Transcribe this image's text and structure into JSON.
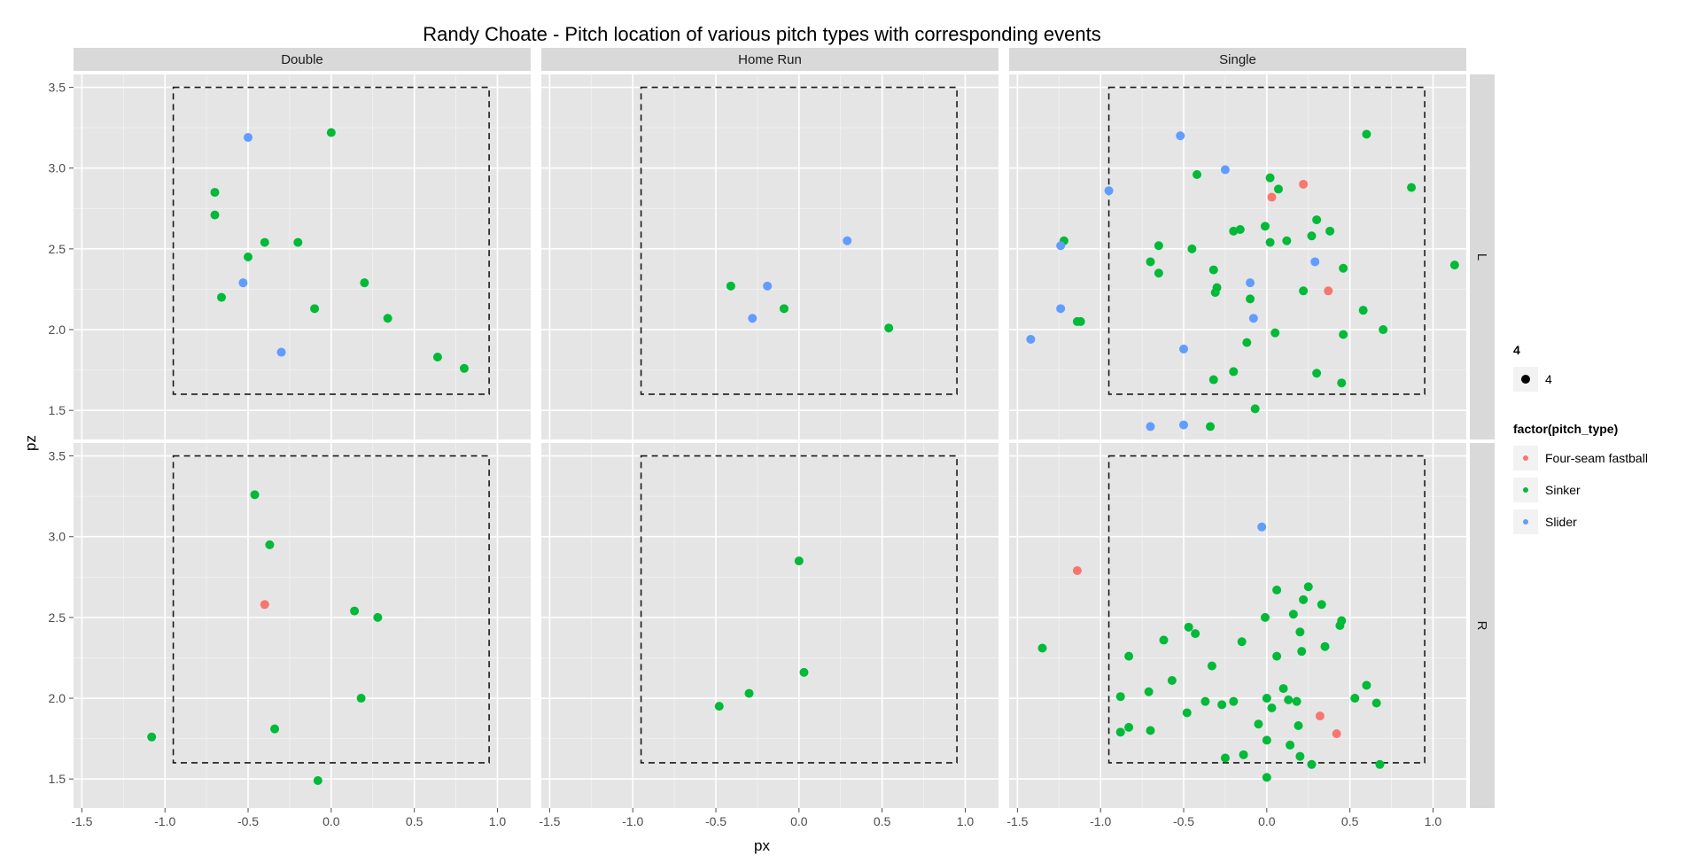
{
  "chart_data": {
    "type": "scatter",
    "title": "Randy Choate - Pitch location of various pitch types with corresponding events",
    "xlabel": "px",
    "ylabel": "pz",
    "xlim": [
      -1.55,
      1.2
    ],
    "ylim": [
      1.32,
      3.58
    ],
    "x_ticks": [
      -1.5,
      -1.0,
      -0.5,
      0.0,
      0.5,
      1.0
    ],
    "x_tick_labels": [
      "-1.5",
      "-1.0",
      "-0.5",
      "0.0",
      "0.5",
      "1.0"
    ],
    "y_ticks": [
      1.5,
      2.0,
      2.5,
      3.0,
      3.5
    ],
    "y_tick_labels": [
      "1.5",
      "2.0",
      "2.5",
      "3.0",
      "3.5"
    ],
    "strike_zone": {
      "x": [
        -0.95,
        0.95
      ],
      "y": [
        1.6,
        3.5
      ]
    },
    "grid": true,
    "columns": [
      "Double",
      "Home Run",
      "Single"
    ],
    "rows": [
      "L",
      "R"
    ],
    "colors": {
      "Four-seam fastball": "#F8766D",
      "Sinker": "#00BA38",
      "Slider": "#619CFF"
    },
    "legend": {
      "size_title": "4",
      "size_label": "4",
      "color_title": "factor(pitch_type)",
      "entries": [
        "Four-seam fastball",
        "Sinker",
        "Slider"
      ],
      "position": "right"
    },
    "panels": [
      {
        "col": "Double",
        "row": "L",
        "points": [
          {
            "x": -0.5,
            "y": 3.19,
            "type": "Slider"
          },
          {
            "x": 0.0,
            "y": 3.22,
            "type": "Sinker"
          },
          {
            "x": -0.7,
            "y": 2.85,
            "type": "Sinker"
          },
          {
            "x": -0.7,
            "y": 2.71,
            "type": "Sinker"
          },
          {
            "x": -0.4,
            "y": 2.54,
            "type": "Sinker"
          },
          {
            "x": -0.2,
            "y": 2.54,
            "type": "Sinker"
          },
          {
            "x": -0.5,
            "y": 2.45,
            "type": "Sinker"
          },
          {
            "x": -0.53,
            "y": 2.29,
            "type": "Slider"
          },
          {
            "x": -0.66,
            "y": 2.2,
            "type": "Sinker"
          },
          {
            "x": 0.2,
            "y": 2.29,
            "type": "Sinker"
          },
          {
            "x": -0.1,
            "y": 2.13,
            "type": "Sinker"
          },
          {
            "x": 0.34,
            "y": 2.07,
            "type": "Sinker"
          },
          {
            "x": -0.3,
            "y": 1.86,
            "type": "Slider"
          },
          {
            "x": 0.64,
            "y": 1.83,
            "type": "Sinker"
          },
          {
            "x": 0.8,
            "y": 1.76,
            "type": "Sinker"
          }
        ]
      },
      {
        "col": "Home Run",
        "row": "L",
        "points": [
          {
            "x": 0.29,
            "y": 2.55,
            "type": "Slider"
          },
          {
            "x": -0.41,
            "y": 2.27,
            "type": "Sinker"
          },
          {
            "x": -0.19,
            "y": 2.27,
            "type": "Slider"
          },
          {
            "x": -0.28,
            "y": 2.07,
            "type": "Slider"
          },
          {
            "x": -0.09,
            "y": 2.13,
            "type": "Sinker"
          },
          {
            "x": 0.54,
            "y": 2.01,
            "type": "Sinker"
          }
        ]
      },
      {
        "col": "Single",
        "row": "L",
        "points": [
          {
            "x": -0.52,
            "y": 3.2,
            "type": "Slider"
          },
          {
            "x": 0.6,
            "y": 3.21,
            "type": "Sinker"
          },
          {
            "x": -0.25,
            "y": 2.99,
            "type": "Slider"
          },
          {
            "x": -0.42,
            "y": 2.96,
            "type": "Sinker"
          },
          {
            "x": 0.02,
            "y": 2.94,
            "type": "Sinker"
          },
          {
            "x": 0.22,
            "y": 2.9,
            "type": "Four-seam fastball"
          },
          {
            "x": 0.87,
            "y": 2.88,
            "type": "Sinker"
          },
          {
            "x": 0.07,
            "y": 2.87,
            "type": "Sinker"
          },
          {
            "x": -0.95,
            "y": 2.86,
            "type": "Slider"
          },
          {
            "x": 0.03,
            "y": 2.82,
            "type": "Four-seam fastball"
          },
          {
            "x": 0.3,
            "y": 2.68,
            "type": "Sinker"
          },
          {
            "x": -0.01,
            "y": 2.64,
            "type": "Sinker"
          },
          {
            "x": -0.2,
            "y": 2.61,
            "type": "Sinker"
          },
          {
            "x": -0.16,
            "y": 2.62,
            "type": "Sinker"
          },
          {
            "x": 0.38,
            "y": 2.61,
            "type": "Sinker"
          },
          {
            "x": 0.27,
            "y": 2.58,
            "type": "Sinker"
          },
          {
            "x": 0.12,
            "y": 2.55,
            "type": "Sinker"
          },
          {
            "x": 0.02,
            "y": 2.54,
            "type": "Sinker"
          },
          {
            "x": -1.22,
            "y": 2.55,
            "type": "Sinker"
          },
          {
            "x": -1.24,
            "y": 2.52,
            "type": "Slider"
          },
          {
            "x": -0.65,
            "y": 2.52,
            "type": "Sinker"
          },
          {
            "x": -0.45,
            "y": 2.5,
            "type": "Sinker"
          },
          {
            "x": -0.7,
            "y": 2.42,
            "type": "Sinker"
          },
          {
            "x": 0.29,
            "y": 2.42,
            "type": "Slider"
          },
          {
            "x": 0.46,
            "y": 2.38,
            "type": "Sinker"
          },
          {
            "x": -0.32,
            "y": 2.37,
            "type": "Sinker"
          },
          {
            "x": -0.65,
            "y": 2.35,
            "type": "Sinker"
          },
          {
            "x": -0.1,
            "y": 2.29,
            "type": "Slider"
          },
          {
            "x": -0.3,
            "y": 2.26,
            "type": "Sinker"
          },
          {
            "x": -0.31,
            "y": 2.23,
            "type": "Sinker"
          },
          {
            "x": 0.22,
            "y": 2.24,
            "type": "Sinker"
          },
          {
            "x": 0.37,
            "y": 2.24,
            "type": "Four-seam fastball"
          },
          {
            "x": -0.1,
            "y": 2.19,
            "type": "Sinker"
          },
          {
            "x": -1.24,
            "y": 2.13,
            "type": "Slider"
          },
          {
            "x": 0.58,
            "y": 2.12,
            "type": "Sinker"
          },
          {
            "x": 1.13,
            "y": 2.4,
            "type": "Sinker"
          },
          {
            "x": -1.12,
            "y": 2.05,
            "type": "Sinker"
          },
          {
            "x": -1.14,
            "y": 2.05,
            "type": "Sinker"
          },
          {
            "x": -0.08,
            "y": 2.07,
            "type": "Slider"
          },
          {
            "x": 0.7,
            "y": 2.0,
            "type": "Sinker"
          },
          {
            "x": 0.05,
            "y": 1.98,
            "type": "Sinker"
          },
          {
            "x": 0.46,
            "y": 1.97,
            "type": "Sinker"
          },
          {
            "x": -1.42,
            "y": 1.94,
            "type": "Slider"
          },
          {
            "x": -0.12,
            "y": 1.92,
            "type": "Sinker"
          },
          {
            "x": -0.5,
            "y": 1.88,
            "type": "Slider"
          },
          {
            "x": -0.2,
            "y": 1.74,
            "type": "Sinker"
          },
          {
            "x": 0.3,
            "y": 1.73,
            "type": "Sinker"
          },
          {
            "x": -0.32,
            "y": 1.69,
            "type": "Sinker"
          },
          {
            "x": 0.45,
            "y": 1.67,
            "type": "Sinker"
          },
          {
            "x": -0.07,
            "y": 1.51,
            "type": "Sinker"
          },
          {
            "x": -0.7,
            "y": 1.4,
            "type": "Slider"
          },
          {
            "x": -0.5,
            "y": 1.41,
            "type": "Slider"
          },
          {
            "x": -0.34,
            "y": 1.4,
            "type": "Sinker"
          }
        ]
      },
      {
        "col": "Double",
        "row": "R",
        "points": [
          {
            "x": -0.46,
            "y": 3.26,
            "type": "Sinker"
          },
          {
            "x": -0.37,
            "y": 2.95,
            "type": "Sinker"
          },
          {
            "x": -0.4,
            "y": 2.58,
            "type": "Four-seam fastball"
          },
          {
            "x": 0.14,
            "y": 2.54,
            "type": "Sinker"
          },
          {
            "x": 0.28,
            "y": 2.5,
            "type": "Sinker"
          },
          {
            "x": 0.18,
            "y": 2.0,
            "type": "Sinker"
          },
          {
            "x": -0.34,
            "y": 1.81,
            "type": "Sinker"
          },
          {
            "x": -1.08,
            "y": 1.76,
            "type": "Sinker"
          },
          {
            "x": -0.08,
            "y": 1.49,
            "type": "Sinker"
          }
        ]
      },
      {
        "col": "Home Run",
        "row": "R",
        "points": [
          {
            "x": 0.0,
            "y": 2.85,
            "type": "Sinker"
          },
          {
            "x": 0.03,
            "y": 2.16,
            "type": "Sinker"
          },
          {
            "x": -0.3,
            "y": 2.03,
            "type": "Sinker"
          },
          {
            "x": -0.48,
            "y": 1.95,
            "type": "Sinker"
          }
        ]
      },
      {
        "col": "Single",
        "row": "R",
        "points": [
          {
            "x": -0.03,
            "y": 3.06,
            "type": "Slider"
          },
          {
            "x": -1.14,
            "y": 2.79,
            "type": "Four-seam fastball"
          },
          {
            "x": 0.25,
            "y": 2.69,
            "type": "Sinker"
          },
          {
            "x": 0.06,
            "y": 2.67,
            "type": "Sinker"
          },
          {
            "x": 0.22,
            "y": 2.61,
            "type": "Sinker"
          },
          {
            "x": 0.33,
            "y": 2.58,
            "type": "Sinker"
          },
          {
            "x": 0.16,
            "y": 2.52,
            "type": "Sinker"
          },
          {
            "x": -0.01,
            "y": 2.5,
            "type": "Sinker"
          },
          {
            "x": 0.45,
            "y": 2.48,
            "type": "Sinker"
          },
          {
            "x": 0.44,
            "y": 2.45,
            "type": "Sinker"
          },
          {
            "x": -0.47,
            "y": 2.44,
            "type": "Sinker"
          },
          {
            "x": -0.43,
            "y": 2.4,
            "type": "Sinker"
          },
          {
            "x": 0.2,
            "y": 2.41,
            "type": "Sinker"
          },
          {
            "x": -0.62,
            "y": 2.36,
            "type": "Sinker"
          },
          {
            "x": -0.15,
            "y": 2.35,
            "type": "Sinker"
          },
          {
            "x": 0.35,
            "y": 2.32,
            "type": "Sinker"
          },
          {
            "x": -1.35,
            "y": 2.31,
            "type": "Sinker"
          },
          {
            "x": 0.21,
            "y": 2.29,
            "type": "Sinker"
          },
          {
            "x": -0.83,
            "y": 2.26,
            "type": "Sinker"
          },
          {
            "x": 0.06,
            "y": 2.26,
            "type": "Sinker"
          },
          {
            "x": -0.33,
            "y": 2.2,
            "type": "Sinker"
          },
          {
            "x": -0.57,
            "y": 2.11,
            "type": "Sinker"
          },
          {
            "x": 0.6,
            "y": 2.08,
            "type": "Sinker"
          },
          {
            "x": 0.1,
            "y": 2.06,
            "type": "Sinker"
          },
          {
            "x": -0.71,
            "y": 2.04,
            "type": "Sinker"
          },
          {
            "x": -0.88,
            "y": 2.01,
            "type": "Sinker"
          },
          {
            "x": 0.53,
            "y": 2.0,
            "type": "Sinker"
          },
          {
            "x": 0.0,
            "y": 2.0,
            "type": "Sinker"
          },
          {
            "x": 0.13,
            "y": 1.99,
            "type": "Sinker"
          },
          {
            "x": -0.37,
            "y": 1.98,
            "type": "Sinker"
          },
          {
            "x": -0.2,
            "y": 1.98,
            "type": "Sinker"
          },
          {
            "x": 0.18,
            "y": 1.98,
            "type": "Sinker"
          },
          {
            "x": 0.66,
            "y": 1.97,
            "type": "Sinker"
          },
          {
            "x": -0.27,
            "y": 1.96,
            "type": "Sinker"
          },
          {
            "x": 0.03,
            "y": 1.94,
            "type": "Sinker"
          },
          {
            "x": -0.48,
            "y": 1.91,
            "type": "Sinker"
          },
          {
            "x": 0.32,
            "y": 1.89,
            "type": "Four-seam fastball"
          },
          {
            "x": -0.05,
            "y": 1.84,
            "type": "Sinker"
          },
          {
            "x": 0.19,
            "y": 1.83,
            "type": "Sinker"
          },
          {
            "x": -0.83,
            "y": 1.82,
            "type": "Sinker"
          },
          {
            "x": -0.7,
            "y": 1.8,
            "type": "Sinker"
          },
          {
            "x": -0.88,
            "y": 1.79,
            "type": "Sinker"
          },
          {
            "x": 0.42,
            "y": 1.78,
            "type": "Four-seam fastball"
          },
          {
            "x": 0.0,
            "y": 1.74,
            "type": "Sinker"
          },
          {
            "x": 0.14,
            "y": 1.71,
            "type": "Sinker"
          },
          {
            "x": -0.14,
            "y": 1.65,
            "type": "Sinker"
          },
          {
            "x": 0.2,
            "y": 1.64,
            "type": "Sinker"
          },
          {
            "x": -0.25,
            "y": 1.63,
            "type": "Sinker"
          },
          {
            "x": 0.27,
            "y": 1.59,
            "type": "Sinker"
          },
          {
            "x": 0.68,
            "y": 1.59,
            "type": "Sinker"
          },
          {
            "x": 0.0,
            "y": 1.51,
            "type": "Sinker"
          }
        ]
      }
    ]
  }
}
